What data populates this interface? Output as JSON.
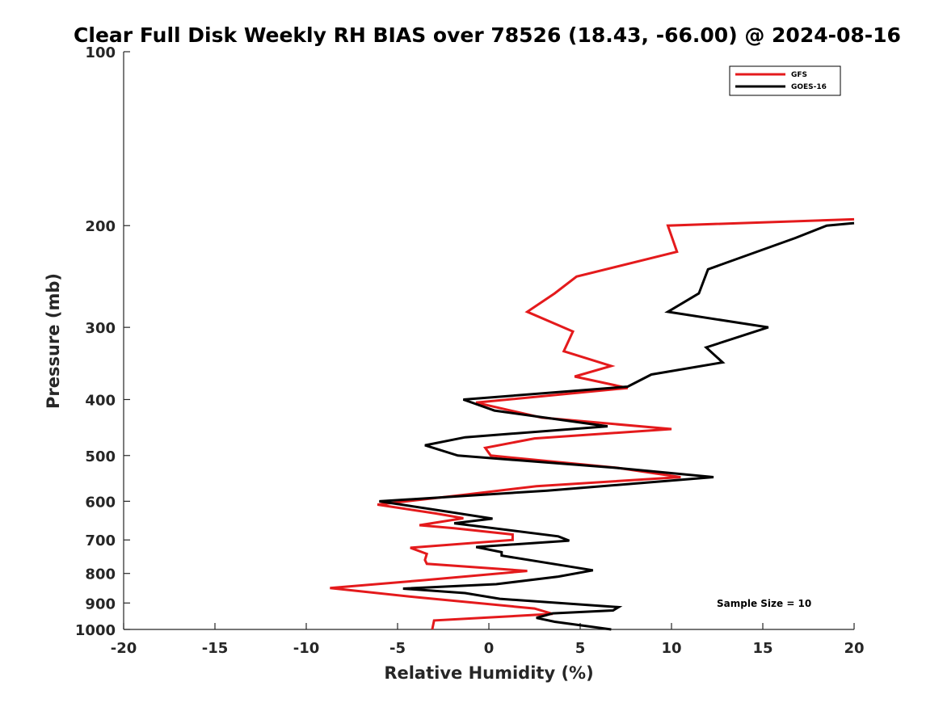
{
  "chart_data": {
    "type": "line",
    "title": "Clear Full Disk Weekly RH BIAS over 78526 (18.43, -66.00) @ 2024-08-16",
    "xlabel": "Relative Humidity (%)",
    "ylabel": "Pressure (mb)",
    "xlim": [
      -20,
      20
    ],
    "ylim": [
      100,
      1000
    ],
    "y_scale": "log",
    "y_reversed": true,
    "x_ticks": [
      -20,
      -15,
      -10,
      -5,
      0,
      5,
      10,
      15,
      20
    ],
    "y_ticks": [
      100,
      200,
      300,
      400,
      500,
      600,
      700,
      800,
      900,
      1000
    ],
    "grid": false,
    "legend_position": "top-right",
    "annotation": "Sample Size = 10",
    "series": [
      {
        "name": "GFS",
        "color": "#e41a1c",
        "points": [
          [
            20.0,
            195
          ],
          [
            9.8,
            200
          ],
          [
            10.3,
            222
          ],
          [
            4.8,
            245
          ],
          [
            3.6,
            262
          ],
          [
            2.1,
            282
          ],
          [
            4.6,
            305
          ],
          [
            4.1,
            330
          ],
          [
            6.7,
            350
          ],
          [
            4.7,
            365
          ],
          [
            7.6,
            382
          ],
          [
            -0.7,
            405
          ],
          [
            2.9,
            430
          ],
          [
            10.0,
            450
          ],
          [
            2.5,
            467
          ],
          [
            -0.2,
            485
          ],
          [
            0.1,
            500
          ],
          [
            7.0,
            525
          ],
          [
            10.5,
            545
          ],
          [
            2.6,
            565
          ],
          [
            -1.4,
            585
          ],
          [
            -6.1,
            608
          ],
          [
            -2.9,
            630
          ],
          [
            -1.4,
            642
          ],
          [
            -3.8,
            660
          ],
          [
            -1.9,
            668
          ],
          [
            1.3,
            685
          ],
          [
            1.3,
            700
          ],
          [
            -4.3,
            722
          ],
          [
            -3.4,
            740
          ],
          [
            -3.5,
            758
          ],
          [
            -3.4,
            770
          ],
          [
            2.1,
            792
          ],
          [
            -3.6,
            822
          ],
          [
            -8.7,
            848
          ],
          [
            -3.9,
            880
          ],
          [
            2.5,
            920
          ],
          [
            3.5,
            940
          ],
          [
            -3.0,
            965
          ],
          [
            -3.1,
            1000
          ]
        ]
      },
      {
        "name": "GOES-16",
        "color": "#000000",
        "points": [
          [
            20.0,
            198
          ],
          [
            18.5,
            200
          ],
          [
            16.8,
            210
          ],
          [
            12.0,
            238
          ],
          [
            11.5,
            262
          ],
          [
            9.8,
            282
          ],
          [
            15.3,
            300
          ],
          [
            11.9,
            325
          ],
          [
            12.8,
            345
          ],
          [
            8.9,
            362
          ],
          [
            7.6,
            380
          ],
          [
            -1.4,
            400
          ],
          [
            0.3,
            418
          ],
          [
            6.5,
            445
          ],
          [
            -1.3,
            465
          ],
          [
            -3.5,
            480
          ],
          [
            -1.7,
            500
          ],
          [
            6.9,
            525
          ],
          [
            12.3,
            545
          ],
          [
            3.2,
            575
          ],
          [
            -6.0,
            600
          ],
          [
            -2.3,
            625
          ],
          [
            0.2,
            643
          ],
          [
            -1.9,
            655
          ],
          [
            3.8,
            690
          ],
          [
            4.4,
            702
          ],
          [
            -0.7,
            720
          ],
          [
            0.7,
            735
          ],
          [
            0.7,
            745
          ],
          [
            5.7,
            790
          ],
          [
            3.8,
            810
          ],
          [
            0.4,
            835
          ],
          [
            -4.7,
            850
          ],
          [
            -1.3,
            865
          ],
          [
            0.6,
            885
          ],
          [
            7.1,
            915
          ],
          [
            6.8,
            927
          ],
          [
            3.5,
            938
          ],
          [
            2.6,
            955
          ],
          [
            3.6,
            970
          ],
          [
            6.7,
            1000
          ]
        ]
      }
    ]
  }
}
